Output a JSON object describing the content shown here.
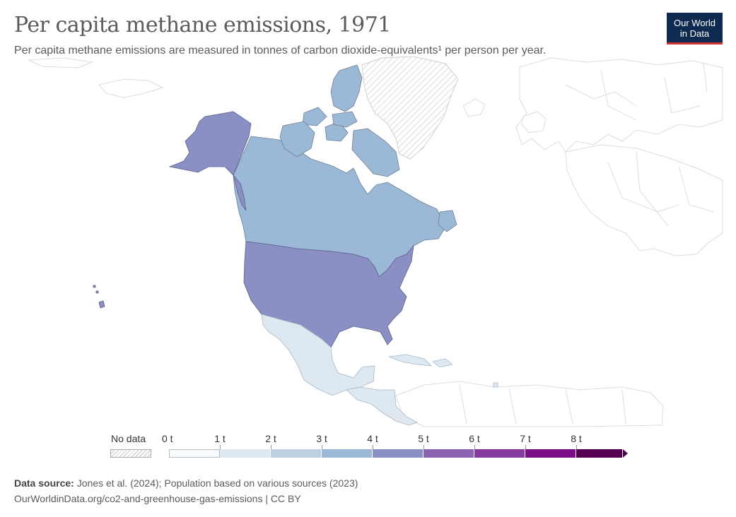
{
  "header": {
    "title": "Per capita methane emissions, 1971",
    "subtitle": "Per capita methane emissions are measured in tonnes of carbon dioxide-equivalents¹ per person per year."
  },
  "logo": {
    "line1": "Our World",
    "line2": "in Data"
  },
  "legend": {
    "no_data_label": "No data",
    "ticks": [
      "0 t",
      "1 t",
      "2 t",
      "3 t",
      "4 t",
      "5 t",
      "6 t",
      "7 t",
      "8 t"
    ],
    "bin_colors": [
      "#f7fbfd",
      "#dde8f0",
      "#bdd0e2",
      "#9bb9d7",
      "#8a8fc4",
      "#8b63b0",
      "#86399f",
      "#7c0f87",
      "#52004f"
    ]
  },
  "map_data": {
    "year": 1971,
    "unit": "t",
    "regions": [
      {
        "name": "Canada",
        "bin": "3-4 t",
        "color": "#9bb9d7"
      },
      {
        "name": "United States",
        "bin": "4-5 t",
        "color": "#8a8fc4"
      },
      {
        "name": "Alaska (United States)",
        "bin": "4-5 t",
        "color": "#8a8fc4"
      },
      {
        "name": "Hawaii (United States)",
        "bin": "4-5 t",
        "color": "#8a8fc4"
      },
      {
        "name": "Mexico",
        "bin": "1-2 t",
        "color": "#dde8f0"
      },
      {
        "name": "Central America",
        "bin": "1-2 t",
        "color": "#dde8f0"
      },
      {
        "name": "Caribbean",
        "bin": "1-2 t",
        "color": "#dde8f0"
      },
      {
        "name": "Greenland",
        "bin": "No data",
        "color": "hatched"
      }
    ]
  },
  "footer": {
    "source_label": "Data source:",
    "source_text": "Jones et al. (2024); Population based on various sources (2023)",
    "url": "OurWorldinData.org/co2-and-greenhouse-gas-emissions | CC BY"
  }
}
